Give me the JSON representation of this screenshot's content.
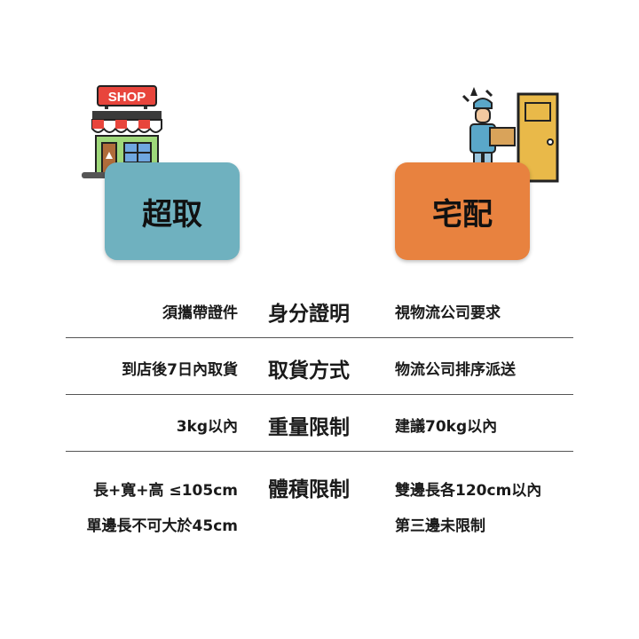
{
  "pickup": {
    "title": "超取",
    "shop_sign": "SHOP"
  },
  "delivery": {
    "title": "宅配"
  },
  "rows": [
    {
      "label": "身分證明",
      "left": [
        "須攜帶證件"
      ],
      "right": [
        "視物流公司要求"
      ]
    },
    {
      "label": "取貨方式",
      "left": [
        "到店後7日內取貨"
      ],
      "right": [
        "物流公司排序派送"
      ]
    },
    {
      "label": "重量限制",
      "left": [
        "3kg以內"
      ],
      "right": [
        "建議70kg以內"
      ]
    },
    {
      "label": "體積限制",
      "left": [
        "長+寬+高 ≤105cm",
        "單邊長不可大於45cm"
      ],
      "right": [
        "雙邊長各120cm以內",
        "第三邊未限制"
      ]
    }
  ],
  "colors": {
    "pickup_card": "#6fb1bf",
    "delivery_card": "#e8823f",
    "shop_sign": "#e8453c",
    "door": "#e9b949"
  },
  "icons": [
    "shop-icon",
    "delivery-person-icon",
    "door-icon"
  ]
}
